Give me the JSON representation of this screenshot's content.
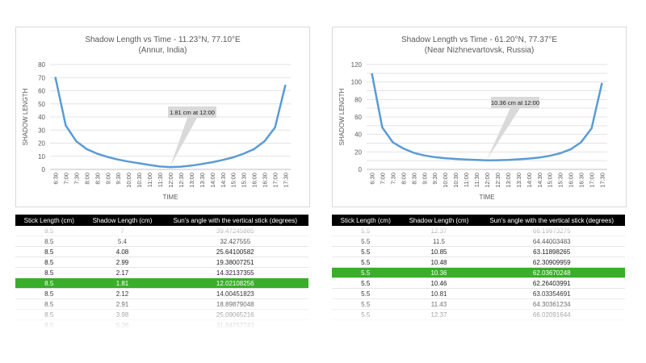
{
  "chart_data": [
    {
      "type": "line",
      "title": "Shadow Length vs Time - 11.23°N, 77.10°E",
      "subtitle": "(Annur, India)",
      "xlabel": "TIME",
      "ylabel": "SHADOW LENGTH",
      "ylim": [
        0,
        80
      ],
      "yticks": [
        0,
        10,
        20,
        30,
        40,
        50,
        60,
        70,
        80
      ],
      "grid": true,
      "categories": [
        "6:30",
        "7:00",
        "7:30",
        "8:00",
        "8:30",
        "9:00",
        "9:30",
        "10:00",
        "10:30",
        "11:00",
        "11:30",
        "12:00",
        "12:30",
        "13:00",
        "13:30",
        "14:00",
        "14:30",
        "15:00",
        "15:30",
        "16:00",
        "16:30",
        "17:00",
        "17:30"
      ],
      "series": [
        {
          "values": [
            70.5,
            33.5,
            21.5,
            15.5,
            12,
            9.5,
            7.5,
            6,
            4.7,
            3.4,
            2.2,
            1.81,
            2.1,
            2.9,
            4.1,
            5.5,
            7.2,
            9.2,
            12,
            15.5,
            21.5,
            32,
            64.5
          ],
          "color": "#5b9bd5"
        }
      ],
      "annotation": "1.81 cm at 12:00"
    },
    {
      "type": "line",
      "title": "Shadow Length vs Time - 61.20°N, 77.37°E",
      "subtitle": "(Near Nizhnevartovsk, Russia)",
      "xlabel": "TIME",
      "ylabel": "SHADOW LENGTH",
      "ylim": [
        0,
        120
      ],
      "yticks": [
        0,
        10,
        20,
        30,
        40,
        50,
        60,
        70,
        80,
        90,
        100,
        110,
        120
      ],
      "ytick_labels_shown": [
        0,
        20,
        40,
        60,
        80,
        100,
        120
      ],
      "grid": true,
      "categories": [
        "6:30",
        "7:00",
        "7:30",
        "8:00",
        "8:30",
        "9:00",
        "9:30",
        "10:00",
        "10:30",
        "11:00",
        "11:30",
        "12:00",
        "12:30",
        "13:00",
        "13:30",
        "14:00",
        "14:30",
        "15:00",
        "15:30",
        "16:00",
        "16:30",
        "17:00",
        "17:30"
      ],
      "series": [
        {
          "values": [
            110,
            48,
            31,
            24,
            19,
            16,
            14,
            12.8,
            12,
            11.4,
            10.8,
            10.36,
            10.5,
            10.9,
            11.5,
            12.4,
            13.6,
            15.5,
            18.5,
            23,
            31,
            47,
            99
          ],
          "color": "#5b9bd5"
        }
      ],
      "annotation": "10.36 cm at 12:00"
    }
  ],
  "tables": [
    {
      "headers": [
        "Stick Length (cm)",
        "Shadow Length (cm)",
        "Sun's angle with the vertical stick (degrees)"
      ],
      "rows": [
        [
          "8.5",
          "7",
          "39.47245885"
        ],
        [
          "8.5",
          "5.4",
          "32.427555"
        ],
        [
          "8.5",
          "4.08",
          "25.64100582"
        ],
        [
          "8.5",
          "2.99",
          "19.38007251"
        ],
        [
          "8.5",
          "2.17",
          "14.32137355"
        ],
        [
          "8.5",
          "1.81",
          "12.02108256"
        ],
        [
          "8.5",
          "2.12",
          "14.00451823"
        ],
        [
          "8.5",
          "2.91",
          "18.89879048"
        ],
        [
          "8.5",
          "3.98",
          "25.09065216"
        ],
        [
          "8.5",
          "5.28",
          "31.84757743"
        ]
      ],
      "highlight_row": 5
    },
    {
      "headers": [
        "Stick Length (cm)",
        "Shadow Length (cm)",
        "Sun's angle with the vertical stick (degrees)"
      ],
      "rows": [
        [
          "5.5",
          "12.37",
          "66.19973275"
        ],
        [
          "5.5",
          "11.5",
          "64.44003483"
        ],
        [
          "5.5",
          "10.85",
          "63.11898265"
        ],
        [
          "5.5",
          "10.48",
          "62.30909959"
        ],
        [
          "5.5",
          "10.36",
          "62.03670248"
        ],
        [
          "5.5",
          "10.46",
          "62.26403991"
        ],
        [
          "5.5",
          "10.81",
          "63.03354691"
        ],
        [
          "5.5",
          "11.43",
          "64.30361234"
        ],
        [
          "5.5",
          "12.37",
          "66.02091644"
        ]
      ],
      "highlight_row": 4
    }
  ]
}
